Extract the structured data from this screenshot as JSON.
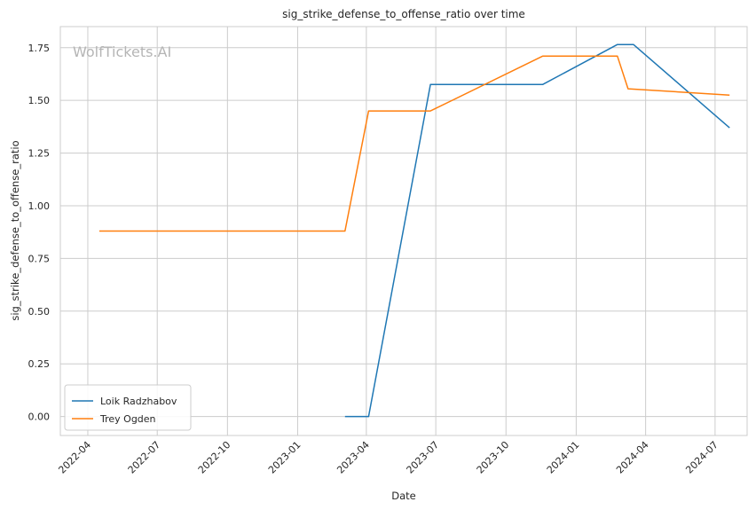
{
  "chart_data": {
    "type": "line",
    "title": "sig_strike_defense_to_offense_ratio over time",
    "xlabel": "Date",
    "ylabel": "sig_strike_defense_to_offense_ratio",
    "watermark": "WolfTickets.AI",
    "x_ticks": [
      "2022-04-01",
      "2022-07-01",
      "2022-10-01",
      "2023-01-01",
      "2023-04-01",
      "2023-07-01",
      "2023-10-01",
      "2024-01-01",
      "2024-04-01",
      "2024-07-01"
    ],
    "x_tick_labels": [
      "2022-04",
      "2022-07",
      "2022-10",
      "2023-01",
      "2023-04",
      "2023-07",
      "2023-10",
      "2024-01",
      "2024-04",
      "2024-07"
    ],
    "y_ticks": [
      0.0,
      0.25,
      0.5,
      0.75,
      1.0,
      1.25,
      1.5,
      1.75
    ],
    "y_tick_labels": [
      "0.00",
      "0.25",
      "0.50",
      "0.75",
      "1.00",
      "1.25",
      "1.50",
      "1.75"
    ],
    "xlim": [
      "2022-02-24",
      "2024-08-12"
    ],
    "ylim": [
      -0.09,
      1.85
    ],
    "grid": true,
    "legend_position": "lower-left",
    "series": [
      {
        "name": "Loik Radzhabov",
        "color": "#1f77b4",
        "points": [
          [
            "2023-03-04",
            0.0
          ],
          [
            "2023-04-04",
            0.0
          ],
          [
            "2023-06-24",
            1.575
          ],
          [
            "2023-11-18",
            1.575
          ],
          [
            "2024-02-24",
            1.765
          ],
          [
            "2024-03-16",
            1.765
          ],
          [
            "2024-07-20",
            1.37
          ]
        ]
      },
      {
        "name": "Trey Ogden",
        "color": "#ff7f0e",
        "points": [
          [
            "2022-04-16",
            0.88
          ],
          [
            "2023-03-04",
            0.88
          ],
          [
            "2023-04-04",
            1.45
          ],
          [
            "2023-06-24",
            1.45
          ],
          [
            "2023-11-18",
            1.71
          ],
          [
            "2024-02-24",
            1.71
          ],
          [
            "2024-03-09",
            1.555
          ],
          [
            "2024-07-20",
            1.525
          ]
        ]
      }
    ]
  }
}
